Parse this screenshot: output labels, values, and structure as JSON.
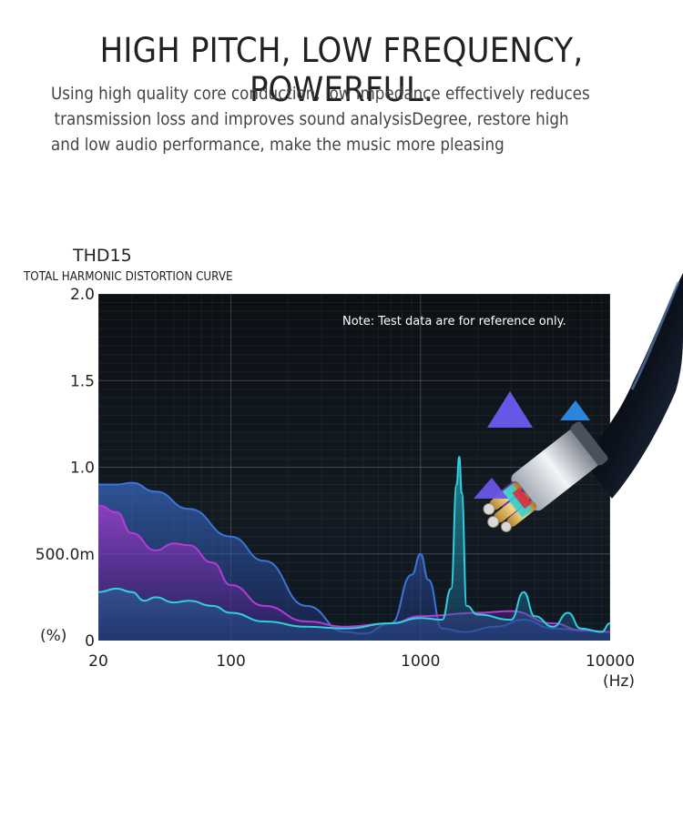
{
  "header": {
    "headline": "HIGH PITCH, LOW FREQUENCY, POWERFUL.",
    "description_lines": [
      "Using high quality core conduction, low impedance effectively reduces",
      "transmission loss and improves sound analysisDegree, restore high",
      "and low audio performance, make the music more pleasing"
    ]
  },
  "chart_data": {
    "type": "area",
    "title": "THD15",
    "subtitle": "TOTAL HARMONIC DISTORTION CURVE",
    "note": "Note: Test data are for reference only.",
    "xscale": "log",
    "xlim": [
      20,
      10000
    ],
    "ylim": [
      0,
      2.0
    ],
    "ylabel": "(%)",
    "xlabel": "(Hz)",
    "y_ticks": [
      {
        "value": 2.0,
        "label": "2.0"
      },
      {
        "value": 1.5,
        "label": "1.5"
      },
      {
        "value": 1.0,
        "label": "1.0"
      },
      {
        "value": 0.5,
        "label": "500.0m"
      },
      {
        "value": 0,
        "label": "0"
      }
    ],
    "x_ticks": [
      {
        "value": 20,
        "label": "20"
      },
      {
        "value": 100,
        "label": "100"
      },
      {
        "value": 1000,
        "label": "1000"
      },
      {
        "value": 10000,
        "label": "10000"
      }
    ],
    "series": [
      {
        "name": "blue",
        "color": "#3d74d8",
        "x": [
          20,
          25,
          30,
          40,
          60,
          100,
          150,
          250,
          400,
          500,
          700,
          900,
          1000,
          1100,
          1300,
          1700,
          2500,
          3500,
          5000,
          7000,
          10000
        ],
        "values": [
          0.9,
          0.9,
          0.91,
          0.86,
          0.76,
          0.6,
          0.46,
          0.2,
          0.05,
          0.04,
          0.1,
          0.38,
          0.5,
          0.35,
          0.07,
          0.05,
          0.08,
          0.12,
          0.07,
          0.06,
          0.05
        ]
      },
      {
        "name": "purple",
        "color": "#b43bd6",
        "x": [
          20,
          25,
          30,
          40,
          50,
          60,
          80,
          100,
          150,
          250,
          400,
          700,
          1000,
          2000,
          3000,
          5000,
          7000,
          10000
        ],
        "values": [
          0.78,
          0.74,
          0.62,
          0.52,
          0.56,
          0.55,
          0.45,
          0.32,
          0.2,
          0.11,
          0.08,
          0.1,
          0.14,
          0.16,
          0.17,
          0.1,
          0.06,
          0.05
        ]
      },
      {
        "name": "cyan",
        "color": "#2ed0de",
        "x": [
          20,
          25,
          30,
          35,
          40,
          50,
          60,
          80,
          100,
          150,
          250,
          400,
          700,
          1000,
          1300,
          1450,
          1550,
          1600,
          1650,
          1750,
          2000,
          3000,
          3500,
          4000,
          5000,
          6000,
          7000,
          9000,
          10000
        ],
        "values": [
          0.28,
          0.3,
          0.28,
          0.23,
          0.25,
          0.22,
          0.23,
          0.2,
          0.16,
          0.11,
          0.08,
          0.07,
          0.1,
          0.13,
          0.12,
          0.3,
          0.9,
          1.06,
          0.85,
          0.2,
          0.15,
          0.12,
          0.28,
          0.14,
          0.08,
          0.16,
          0.07,
          0.05,
          0.1
        ]
      }
    ]
  }
}
